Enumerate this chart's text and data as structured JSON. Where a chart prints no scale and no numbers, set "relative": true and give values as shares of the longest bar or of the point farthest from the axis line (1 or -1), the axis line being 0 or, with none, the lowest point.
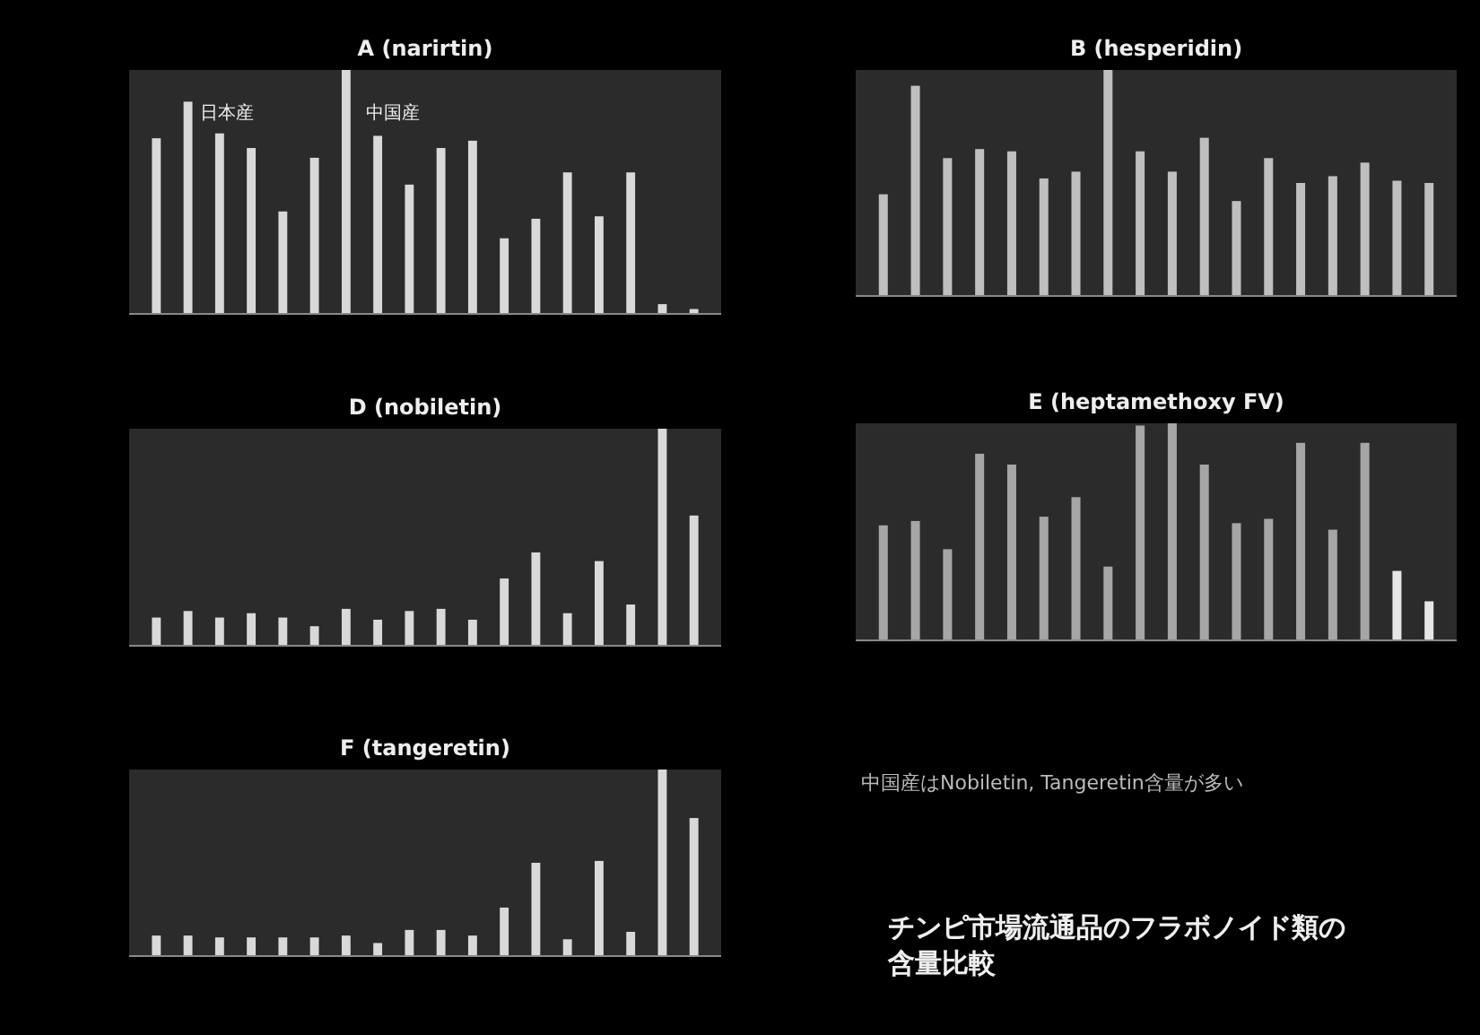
{
  "chart_data": [
    {
      "type": "bar",
      "title": "A (narirtin)",
      "relative": true,
      "color": "#d9d9d9",
      "categories": [
        null,
        null,
        null,
        null,
        null,
        null,
        null,
        null,
        null,
        null,
        null,
        null,
        null,
        null,
        null,
        null,
        null,
        null
      ],
      "values": [
        0.72,
        0.87,
        0.74,
        0.68,
        0.42,
        0.64,
        1,
        0.73,
        0.53,
        0.68,
        0.71,
        0.31,
        0.39,
        0.58,
        0.4,
        0.58,
        0.04,
        0.02
      ],
      "annotations": [
        "日本産",
        "中国産"
      ]
    },
    {
      "type": "bar",
      "title": "B (hesperidin)",
      "relative": true,
      "color": "#bfbfbf",
      "categories": [
        null,
        null,
        null,
        null,
        null,
        null,
        null,
        null,
        null,
        null,
        null,
        null,
        null,
        null,
        null,
        null,
        null,
        null
      ],
      "values": [
        0.45,
        0.93,
        0.61,
        0.65,
        0.64,
        0.52,
        0.55,
        1,
        0.64,
        0.55,
        0.7,
        0.42,
        0.61,
        0.5,
        0.53,
        0.59,
        0.51,
        0.5
      ]
    },
    {
      "type": "bar",
      "title": "D (nobiletin)",
      "relative": true,
      "color": "#d9d9d9",
      "categories": [
        null,
        null,
        null,
        null,
        null,
        null,
        null,
        null,
        null,
        null,
        null,
        null,
        null,
        null,
        null,
        null,
        null,
        null
      ],
      "values": [
        0.13,
        0.16,
        0.13,
        0.15,
        0.13,
        0.09,
        0.17,
        0.12,
        0.16,
        0.17,
        0.12,
        0.31,
        0.43,
        0.15,
        0.39,
        0.19,
        1,
        0.6
      ]
    },
    {
      "type": "bar",
      "title": "E (heptamethoxy FV)",
      "relative": true,
      "colors": [
        "#a6a6a6",
        "#a6a6a6",
        "#a6a6a6",
        "#a6a6a6",
        "#a6a6a6",
        "#a6a6a6",
        "#a6a6a6",
        "#a6a6a6",
        "#a6a6a6",
        "#a6a6a6",
        "#a6a6a6",
        "#a6a6a6",
        "#a6a6a6",
        "#a6a6a6",
        "#a6a6a6",
        "#a6a6a6",
        "#e6e6e6",
        "#e6e6e6"
      ],
      "categories": [
        null,
        null,
        null,
        null,
        null,
        null,
        null,
        null,
        null,
        null,
        null,
        null,
        null,
        null,
        null,
        null,
        null,
        null
      ],
      "values": [
        0.53,
        0.55,
        0.42,
        0.86,
        0.81,
        0.57,
        0.66,
        0.34,
        0.99,
        1,
        0.81,
        0.54,
        0.56,
        0.91,
        0.51,
        0.91,
        0.32,
        0.18
      ]
    },
    {
      "type": "bar",
      "title": "F (tangeretin)",
      "relative": true,
      "color": "#d9d9d9",
      "categories": [
        null,
        null,
        null,
        null,
        null,
        null,
        null,
        null,
        null,
        null,
        null,
        null,
        null,
        null,
        null,
        null,
        null,
        null
      ],
      "values": [
        0.11,
        0.11,
        0.1,
        0.1,
        0.1,
        0.1,
        0.11,
        0.07,
        0.14,
        0.14,
        0.11,
        0.26,
        0.5,
        0.09,
        0.51,
        0.13,
        1,
        0.74
      ]
    },
    {
      "type": "other",
      "annotations": [
        "中国産はNobiletin, Tangeretin含量が多い",
        "チンピ市場流通品のフラボノイド類の含量比較"
      ]
    }
  ]
}
